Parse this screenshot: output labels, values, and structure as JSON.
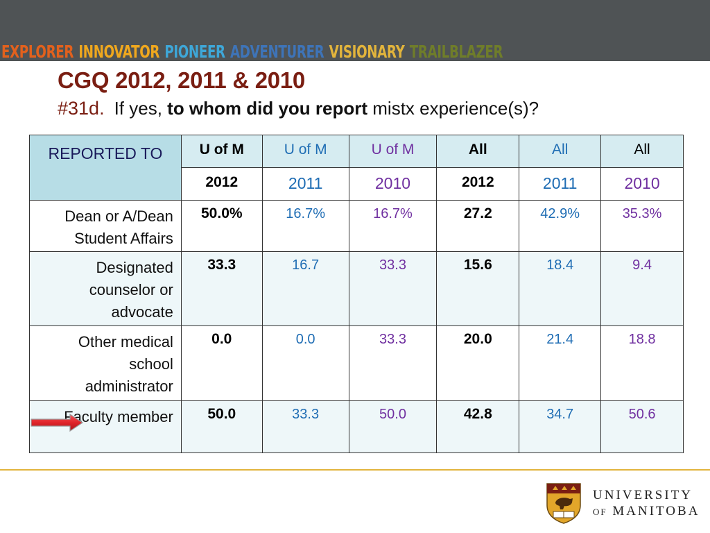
{
  "banner": {
    "words": [
      {
        "text": "EXPLORER",
        "color": "#e2611d"
      },
      {
        "text": "INNOVATOR",
        "color": "#f0a81e"
      },
      {
        "text": "PIONEER",
        "color": "#3ea7d8"
      },
      {
        "text": "ADVENTURER",
        "color": "#3e74b8"
      },
      {
        "text": "VISIONARY",
        "color": "#e2b43c"
      },
      {
        "text": "TRAILBLAZER",
        "color": "#6f7d2a"
      }
    ]
  },
  "title": "CGQ 2012, 2011 & 2010",
  "subtitle": {
    "number": "#31d.",
    "prefix": "If yes, ",
    "emphasis": "to whom did you report",
    "suffix": " mistx experience(s)?"
  },
  "table": {
    "header_label": "REPORTED TO",
    "groups": [
      "U of M",
      "U of M",
      "U of M",
      "All",
      "All",
      "All"
    ],
    "years": [
      "2012",
      "2011",
      "2010",
      "2012",
      "2011",
      "2010"
    ],
    "rows": [
      {
        "label": "Dean or A/Dean Student Affairs",
        "values": [
          "50.0%",
          "16.7%",
          "16.7%",
          "27.2",
          "42.9%",
          "35.3%"
        ]
      },
      {
        "label": "Designated counselor or advocate",
        "values": [
          "33.3",
          "16.7",
          "33.3",
          "15.6",
          "18.4",
          "9.4"
        ]
      },
      {
        "label": "Other medical school administrator",
        "values": [
          "0.0",
          "0.0",
          "33.3",
          "20.0",
          "21.4",
          "18.8"
        ]
      },
      {
        "label": "Faculty member",
        "values": [
          "50.0",
          "33.3",
          "50.0",
          "42.8",
          "34.7",
          "50.6"
        ]
      }
    ]
  },
  "colors": {
    "title": "#7a1e12",
    "header_fill": "#b7dde6",
    "value_2011": "#1f6db4",
    "value_2010": "#7030a0",
    "arrow": "#e0242a",
    "footer_line": "#e2b43c"
  },
  "arrow_icon": "red-arrow-right-icon",
  "logo": {
    "line1": "UNIVERSITY",
    "line2_of": "OF",
    "line2_name": "MANITOBA"
  }
}
